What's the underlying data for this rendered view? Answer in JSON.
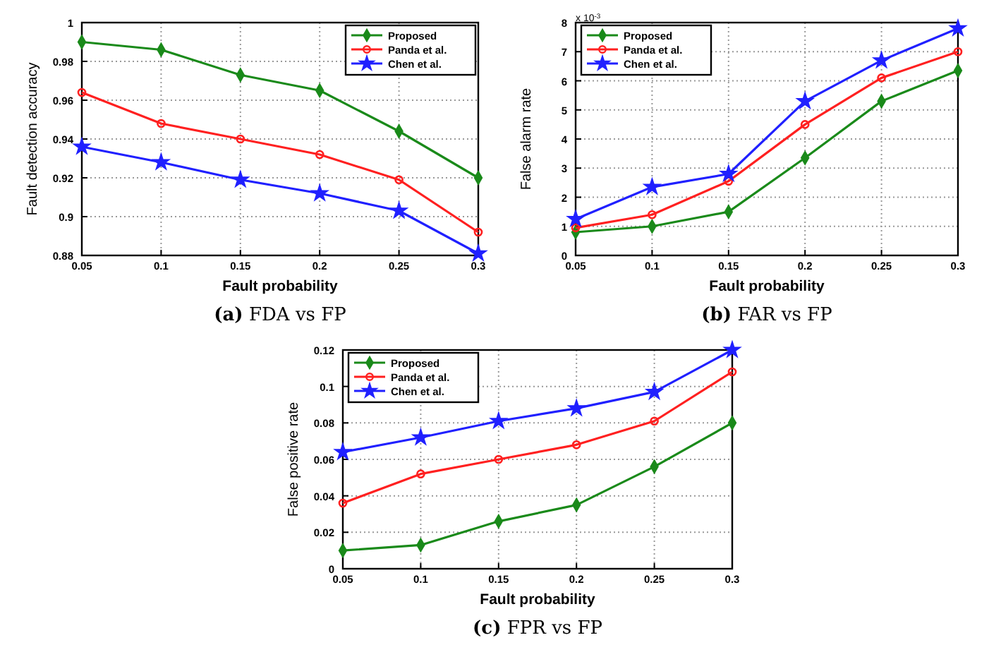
{
  "chart_data": [
    {
      "type": "line",
      "title": "(a) FDA vs FP",
      "xlabel": "Fault probability",
      "ylabel": "Fault detection accuracy",
      "x": [
        0.05,
        0.1,
        0.15,
        0.2,
        0.25,
        0.3
      ],
      "xlim": [
        0.05,
        0.3
      ],
      "xticks": [
        0.05,
        0.1,
        0.15,
        0.2,
        0.25,
        0.3
      ],
      "ylim": [
        0.88,
        1
      ],
      "yticks": [
        0.88,
        0.9,
        0.92,
        0.94,
        0.96,
        0.98,
        1
      ],
      "grid": true,
      "legend": "top right",
      "series": [
        {
          "name": "Proposed",
          "color": "#1a8a1a",
          "marker": "diamond",
          "values": [
            0.99,
            0.986,
            0.973,
            0.965,
            0.944,
            0.92
          ]
        },
        {
          "name": "Panda et al.",
          "color": "#ff2020",
          "marker": "circle",
          "values": [
            0.964,
            0.948,
            0.94,
            0.932,
            0.919,
            0.892
          ]
        },
        {
          "name": "Chen et al.",
          "color": "#2020ff",
          "marker": "star",
          "values": [
            0.936,
            0.928,
            0.919,
            0.912,
            0.903,
            0.881
          ]
        }
      ]
    },
    {
      "type": "line",
      "title": "(b) FAR vs FP",
      "xlabel": "Fault probability",
      "ylabel": "False alarm rate",
      "annotations": [
        "x 10$^{-3}$"
      ],
      "x": [
        0.05,
        0.1,
        0.15,
        0.2,
        0.25,
        0.3
      ],
      "xlim": [
        0.05,
        0.3
      ],
      "xticks": [
        0.05,
        0.1,
        0.15,
        0.2,
        0.25,
        0.3
      ],
      "ylim": [
        0,
        8
      ],
      "yticks": [
        0,
        1,
        2,
        3,
        4,
        5,
        6,
        7,
        8
      ],
      "grid": true,
      "legend": "top left",
      "series": [
        {
          "name": "Proposed",
          "color": "#1a8a1a",
          "marker": "diamond",
          "values": [
            0.8,
            1.0,
            1.5,
            3.35,
            5.3,
            6.35
          ]
        },
        {
          "name": "Panda et al.",
          "color": "#ff2020",
          "marker": "circle",
          "values": [
            0.95,
            1.4,
            2.55,
            4.5,
            6.1,
            7.0
          ]
        },
        {
          "name": "Chen et al.",
          "color": "#2020ff",
          "marker": "star",
          "values": [
            1.25,
            2.35,
            2.8,
            5.3,
            6.7,
            7.8
          ]
        }
      ]
    },
    {
      "type": "line",
      "title": "(c) FPR vs FP",
      "xlabel": "Fault probability",
      "ylabel": "False positive rate",
      "x": [
        0.05,
        0.1,
        0.15,
        0.2,
        0.25,
        0.3
      ],
      "xlim": [
        0.05,
        0.3
      ],
      "xticks": [
        0.05,
        0.1,
        0.15,
        0.2,
        0.25,
        0.3
      ],
      "ylim": [
        0,
        0.12
      ],
      "yticks": [
        0,
        0.02,
        0.04,
        0.06,
        0.08,
        0.1,
        0.12
      ],
      "grid": true,
      "legend": "top left",
      "series": [
        {
          "name": "Proposed",
          "color": "#1a8a1a",
          "marker": "diamond",
          "values": [
            0.01,
            0.013,
            0.026,
            0.035,
            0.056,
            0.08
          ]
        },
        {
          "name": "Panda et al.",
          "color": "#ff2020",
          "marker": "circle",
          "values": [
            0.036,
            0.052,
            0.06,
            0.068,
            0.081,
            0.108
          ]
        },
        {
          "name": "Chen et al.",
          "color": "#2020ff",
          "marker": "star",
          "values": [
            0.064,
            0.072,
            0.081,
            0.088,
            0.097,
            0.12
          ]
        }
      ]
    }
  ]
}
